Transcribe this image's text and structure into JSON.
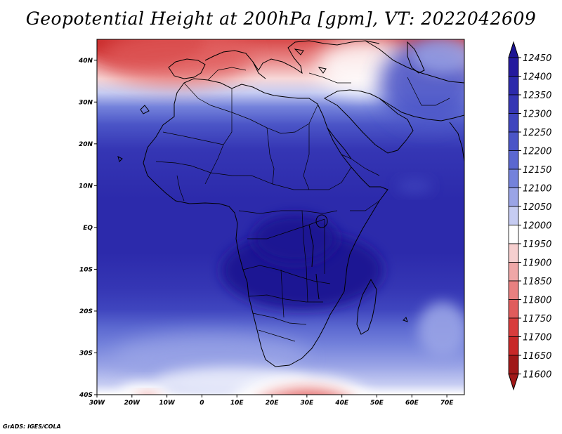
{
  "title": "Geopotential Height at 200hPa [gpm], VT: 2022042609",
  "credit": "GrADS: IGES/COLA",
  "map": {
    "lon_range": [
      -30,
      75
    ],
    "lat_range": [
      -40,
      45
    ],
    "lat_ticks": [
      {
        "value": 40,
        "label": "40N"
      },
      {
        "value": 30,
        "label": "30N"
      },
      {
        "value": 20,
        "label": "20N"
      },
      {
        "value": 10,
        "label": "10N"
      },
      {
        "value": 0,
        "label": "EQ"
      },
      {
        "value": -10,
        "label": "10S"
      },
      {
        "value": -20,
        "label": "20S"
      },
      {
        "value": -30,
        "label": "30S"
      },
      {
        "value": -40,
        "label": "40S"
      }
    ],
    "lon_ticks": [
      {
        "value": -30,
        "label": "30W"
      },
      {
        "value": -20,
        "label": "20W"
      },
      {
        "value": -10,
        "label": "10W"
      },
      {
        "value": 0,
        "label": "0"
      },
      {
        "value": 10,
        "label": "10E"
      },
      {
        "value": 20,
        "label": "20E"
      },
      {
        "value": 30,
        "label": "30E"
      },
      {
        "value": 40,
        "label": "40E"
      },
      {
        "value": 50,
        "label": "50E"
      },
      {
        "value": 60,
        "label": "60E"
      },
      {
        "value": 70,
        "label": "70E"
      }
    ]
  },
  "colorbar": {
    "levels": [
      "12450",
      "12400",
      "12350",
      "12300",
      "12250",
      "12200",
      "12150",
      "12100",
      "12050",
      "12000",
      "11950",
      "11900",
      "11850",
      "11800",
      "11750",
      "11700",
      "11650",
      "11600"
    ],
    "colors": [
      "#1c1493",
      "#241a9e",
      "#2c2aab",
      "#3536b4",
      "#3f45be",
      "#4b55c7",
      "#5b68d0",
      "#7482db",
      "#9aa4e6",
      "#c6ccf2",
      "#ffffff",
      "#f6cfcf",
      "#efa7a7",
      "#e88080",
      "#e05c5c",
      "#d83c3c",
      "#c82828",
      "#a01818"
    ]
  }
}
